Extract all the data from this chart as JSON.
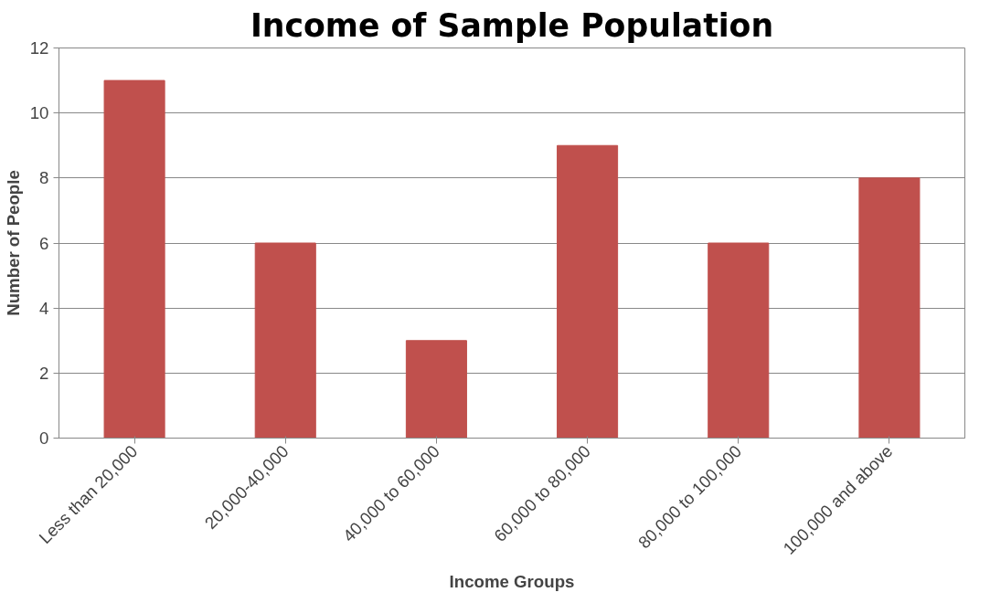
{
  "chart_data": {
    "type": "bar",
    "title": "Income of Sample Population",
    "xlabel": "Income Groups",
    "ylabel": "Number of People",
    "categories": [
      "Less than 20,000",
      "20,000-40,000",
      "40,000 to 60,000",
      "60,000 to 80,000",
      "80,000 to 100,000",
      "100,000 and above"
    ],
    "values": [
      11,
      6,
      3,
      9,
      6,
      8
    ],
    "color": "#c0504d",
    "ylim": [
      0,
      12
    ],
    "yticks": [
      0,
      2,
      4,
      6,
      8,
      10,
      12
    ],
    "grid": "y"
  }
}
